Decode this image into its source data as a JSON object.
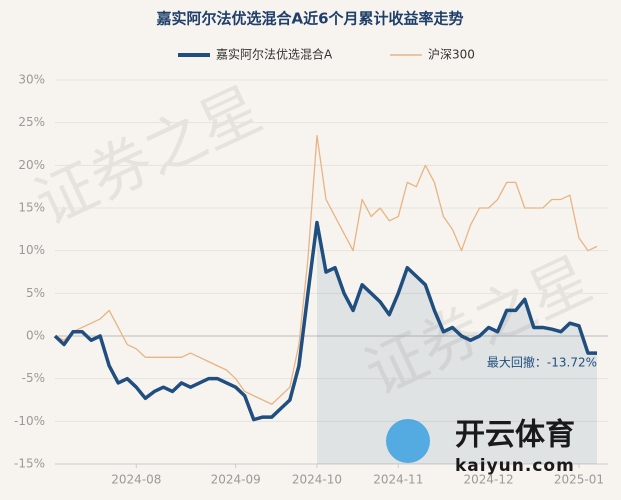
{
  "chart_data": {
    "type": "line",
    "title": "嘉实阿尔法优选混合A近6个月累计收益率走势",
    "categories": [
      null,
      null,
      null,
      null,
      null,
      null,
      null,
      null,
      null,
      "2024-08",
      null,
      null,
      null,
      null,
      null,
      null,
      null,
      null,
      null,
      null,
      "2024-09",
      null,
      null,
      null,
      null,
      null,
      null,
      null,
      null,
      "2024-10",
      null,
      null,
      null,
      null,
      null,
      null,
      null,
      null,
      "2024-11",
      null,
      null,
      null,
      null,
      null,
      null,
      null,
      null,
      null,
      "2024-12",
      null,
      null,
      null,
      null,
      null,
      null,
      null,
      null,
      null,
      "2025-01",
      null,
      null
    ],
    "series": [
      {
        "name": "嘉实阿尔法优选混合A",
        "color": "#1f4e7f",
        "values": [
          0,
          -1,
          0.5,
          0.5,
          -0.5,
          0,
          -3.5,
          -5.5,
          -5,
          -6,
          -7.3,
          -6.5,
          -6,
          -6.5,
          -5.5,
          -6,
          -5.5,
          -5,
          -5,
          -5.5,
          -6,
          -7,
          -9.8,
          -9.5,
          -9.5,
          -8.5,
          -7.5,
          -3.5,
          5,
          13.3,
          7.5,
          8,
          5,
          3,
          6,
          5,
          4,
          2.5,
          5,
          8,
          7,
          6,
          3,
          0.5,
          1,
          0,
          -0.5,
          0,
          1,
          0.5,
          3,
          3,
          4.3,
          1,
          1,
          0.8,
          0.5,
          1.5,
          1.2,
          -2,
          -2
        ]
      },
      {
        "name": "沪深300",
        "color": "#e8b483",
        "values": [
          0,
          -0.5,
          0.5,
          1,
          1.5,
          2,
          3,
          1,
          -1,
          -1.5,
          -2.5,
          -2.5,
          -2.5,
          -2.5,
          -2.5,
          -2,
          -2.5,
          -3,
          -3.5,
          -4,
          -5,
          -6.5,
          -7,
          -7.5,
          -8,
          -7,
          -6,
          -1,
          9,
          23.5,
          16,
          14,
          12,
          10,
          16,
          14,
          15,
          13.5,
          14,
          18,
          17.5,
          20,
          18,
          14,
          12.5,
          10,
          13,
          15,
          15,
          16,
          18,
          18,
          15,
          15,
          15,
          16,
          16,
          16.5,
          11.5,
          10,
          10.5
        ]
      }
    ],
    "ylim": [
      -15,
      30
    ],
    "yticks": [
      {
        "value": -15,
        "label": "-15%"
      },
      {
        "value": -10,
        "label": "-10%"
      },
      {
        "value": -5,
        "label": "-5%"
      },
      {
        "value": 0,
        "label": "0%"
      },
      {
        "value": 5,
        "label": "5%"
      },
      {
        "value": 10,
        "label": "10%"
      },
      {
        "value": 15,
        "label": "15%"
      },
      {
        "value": 20,
        "label": "20%"
      },
      {
        "value": 25,
        "label": "25%"
      },
      {
        "value": 30,
        "label": "30%"
      }
    ],
    "grid": true,
    "legend": "top",
    "annotation": "最大回撤：-13.72%",
    "watermarks": [
      "证券之星",
      "开云体育",
      "kaiyun.com"
    ]
  }
}
